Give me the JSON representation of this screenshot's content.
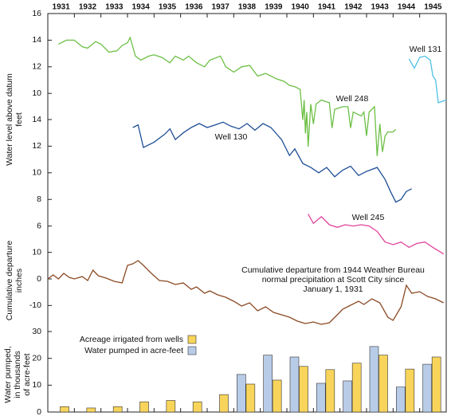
{
  "chart_data": [
    {
      "type": "line",
      "ylabel": [
        "Water level above datum",
        "feet"
      ],
      "xlim": [
        1931,
        1946
      ],
      "ylim": [
        5,
        16
      ],
      "yticks": [
        10,
        12,
        14,
        16
      ],
      "series": [
        {
          "name": "Well 248",
          "color": "#6cbf45",
          "x": [
            1931.4,
            1931.7,
            1932.0,
            1932.3,
            1932.5,
            1932.8,
            1933.0,
            1933.3,
            1933.6,
            1933.8,
            1934.0,
            1934.1,
            1934.3,
            1934.5,
            1934.8,
            1935.0,
            1935.3,
            1935.6,
            1935.8,
            1936.1,
            1936.3,
            1936.6,
            1936.9,
            1937.1,
            1937.5,
            1937.7,
            1938.0,
            1938.3,
            1938.6,
            1938.9,
            1939.2,
            1939.6,
            1939.9,
            1940.1,
            1940.3,
            1940.5,
            1940.6,
            1940.65,
            1940.7,
            1940.75,
            1940.8,
            1940.9,
            1941.0,
            1941.1,
            1941.3,
            1941.6,
            1941.7,
            1941.8,
            1942.1,
            1942.3,
            1942.4,
            1942.5,
            1942.8,
            1942.9,
            1943.0,
            1943.1,
            1943.3,
            1943.4,
            1943.5,
            1943.6,
            1943.7,
            1943.8,
            1944.0,
            1944.1
          ],
          "values": [
            13.7,
            14.0,
            14.0,
            13.5,
            13.4,
            13.9,
            13.7,
            13.1,
            13.2,
            13.6,
            13.8,
            14.2,
            12.8,
            12.5,
            12.8,
            12.9,
            12.7,
            12.3,
            12.8,
            12.5,
            12.8,
            12.3,
            12.0,
            12.5,
            12.8,
            12.0,
            11.6,
            12.0,
            12.1,
            11.3,
            11.5,
            11.1,
            10.9,
            10.6,
            10.5,
            10.3,
            8.0,
            9.5,
            7.0,
            8.6,
            6.0,
            9.2,
            7.7,
            9.2,
            9.5,
            9.3,
            7.4,
            8.8,
            9.0,
            9.0,
            7.4,
            8.6,
            8.3,
            8.6,
            6.8,
            8.6,
            9.0,
            5.3,
            7.7,
            5.6,
            6.8,
            7.1,
            7.1,
            7.3
          ]
        },
        {
          "name": "Well 131",
          "color": "#4ec0e6",
          "x": [
            1944.6,
            1944.8,
            1945.0,
            1945.2,
            1945.4,
            1945.5,
            1945.6,
            1945.7,
            1946.0
          ],
          "values": [
            12.6,
            11.9,
            12.7,
            12.8,
            12.5,
            11.3,
            11.0,
            9.3,
            9.5
          ]
        }
      ]
    },
    {
      "type": "line",
      "xlim": [
        1931,
        1946
      ],
      "ylim": [
        3.5,
        14
      ],
      "yticks": [
        6,
        8,
        10,
        12,
        14
      ],
      "series": [
        {
          "name": "Well 130",
          "color": "#1f4e96",
          "x": [
            1934.2,
            1934.4,
            1934.6,
            1935.0,
            1935.4,
            1935.6,
            1935.8,
            1936.1,
            1936.4,
            1936.7,
            1937.0,
            1937.3,
            1937.6,
            1937.9,
            1938.2,
            1938.5,
            1938.8,
            1939.1,
            1939.4,
            1939.8,
            1940.1,
            1940.3,
            1940.6,
            1940.9,
            1941.2,
            1941.5,
            1941.8,
            1942.1,
            1942.4,
            1942.7,
            1943.0,
            1943.4,
            1943.7,
            1943.9,
            1944.1,
            1944.3,
            1944.5,
            1944.7
          ],
          "values": [
            13.4,
            13.6,
            11.9,
            12.3,
            12.9,
            13.3,
            12.5,
            13.0,
            13.4,
            13.7,
            13.4,
            13.6,
            13.8,
            13.5,
            13.3,
            13.7,
            13.2,
            13.7,
            13.4,
            12.5,
            11.3,
            11.8,
            10.7,
            10.4,
            10.0,
            10.4,
            9.7,
            10.2,
            10.5,
            9.8,
            10.1,
            10.4,
            9.5,
            8.6,
            7.8,
            8.0,
            8.6,
            8.8
          ]
        },
        {
          "name": "Well 245",
          "color": "#e0449a",
          "x": [
            1940.8,
            1941.0,
            1941.3,
            1941.6,
            1941.9,
            1942.2,
            1942.5,
            1942.8,
            1943.1,
            1943.4,
            1943.7,
            1944.0,
            1944.3,
            1944.6,
            1944.9,
            1945.2,
            1945.5,
            1945.9
          ],
          "values": [
            6.9,
            6.2,
            6.7,
            6.1,
            5.9,
            6.1,
            6.0,
            6.1,
            6.0,
            5.6,
            4.8,
            4.6,
            4.8,
            4.4,
            4.7,
            4.8,
            4.4,
            3.9
          ]
        }
      ]
    },
    {
      "type": "line",
      "ylabel": [
        "Cumulative departure",
        "inches"
      ],
      "annotation": [
        "Cumulative departure from 1944 Weather Bureau",
        "normal precipitation at Scott City since",
        "January 1, 1931"
      ],
      "xlim": [
        1931,
        1946
      ],
      "ylim": [
        -18,
        12
      ],
      "yticks": [
        -10,
        0,
        10
      ],
      "series": [
        {
          "color": "#8b4a24",
          "x": [
            1931.0,
            1931.2,
            1931.4,
            1931.6,
            1931.8,
            1932.0,
            1932.3,
            1932.5,
            1932.7,
            1932.9,
            1933.2,
            1933.5,
            1933.8,
            1934.0,
            1934.2,
            1934.4,
            1934.6,
            1934.9,
            1935.2,
            1935.5,
            1935.8,
            1936.1,
            1936.4,
            1936.6,
            1936.9,
            1937.1,
            1937.4,
            1937.7,
            1938.0,
            1938.3,
            1938.6,
            1938.9,
            1939.2,
            1939.5,
            1939.8,
            1940.1,
            1940.4,
            1940.7,
            1941.0,
            1941.3,
            1941.6,
            1941.9,
            1942.1,
            1942.4,
            1942.7,
            1942.9,
            1943.2,
            1943.5,
            1943.8,
            1944.0,
            1944.3,
            1944.5,
            1944.7,
            1945.0,
            1945.3,
            1945.6,
            1945.9
          ],
          "values": [
            0,
            1.5,
            0,
            2.1,
            0.6,
            0,
            0.9,
            -0.6,
            3.3,
            1.2,
            0.3,
            -0.9,
            -1.5,
            5.1,
            5.7,
            6.9,
            5.1,
            2.1,
            -0.6,
            -0.9,
            -2.1,
            -1.5,
            -3.9,
            -3.0,
            -5.4,
            -4.5,
            -6.0,
            -6.9,
            -8.4,
            -10.2,
            -9.0,
            -12.0,
            -10.5,
            -12.6,
            -13.5,
            -14.4,
            -15.9,
            -16.8,
            -16.2,
            -17.1,
            -16.5,
            -13.5,
            -11.4,
            -9.9,
            -8.4,
            -9.6,
            -7.5,
            -9.0,
            -14.4,
            -15.6,
            -10.5,
            -2.4,
            -5.4,
            -4.8,
            -6.6,
            -7.5,
            -9.0
          ]
        }
      ]
    },
    {
      "type": "bar",
      "ylabel": [
        "Water pumped,",
        "in thousands",
        "of acre-feet"
      ],
      "categories": [
        "1931",
        "1932",
        "1933",
        "1934",
        "1935",
        "1936",
        "1937",
        "1938",
        "1939",
        "1940",
        "1941",
        "1942",
        "1943",
        "1944",
        "1945"
      ],
      "ylim": [
        0,
        30
      ],
      "yticks": [
        0,
        10,
        20,
        30
      ],
      "legend": "upper left",
      "series": [
        {
          "name": "Acreage irrigated from wells",
          "color": "#f8d55a",
          "values": [
            2,
            1.5,
            2,
            3.8,
            4.3,
            3.8,
            6.5,
            10.4,
            11.9,
            17,
            15.8,
            18.2,
            21.2,
            16,
            20.5
          ]
        },
        {
          "name": "Water pumped in acre-feet",
          "color": "#b8cce8",
          "values": [
            null,
            null,
            null,
            null,
            null,
            null,
            null,
            14,
            21.2,
            20.5,
            10.7,
            11.6,
            24.4,
            9.3,
            17.8
          ]
        }
      ]
    }
  ]
}
